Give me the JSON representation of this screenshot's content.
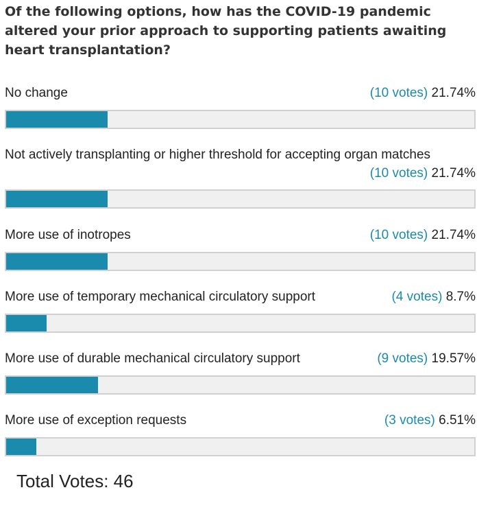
{
  "poll": {
    "question": "Of the following options, how has the COVID-19 pandemic altered your prior approach to supporting patients awaiting heart transplantation?",
    "options": [
      {
        "label": "No change",
        "votes": "(10 votes)",
        "percent": "21.74%",
        "fraction": 0.2174
      },
      {
        "label": "Not actively transplanting or higher threshold for accepting organ matches",
        "votes": "(10 votes)",
        "percent": "21.74%",
        "fraction": 0.2174
      },
      {
        "label": "More use of inotropes",
        "votes": "(10 votes)",
        "percent": "21.74%",
        "fraction": 0.2174
      },
      {
        "label": "More use of temporary mechanical circulatory support",
        "votes": "(4 votes)",
        "percent": "8.7%",
        "fraction": 0.087
      },
      {
        "label": "More use of durable mechanical circulatory support",
        "votes": "(9 votes)",
        "percent": "19.57%",
        "fraction": 0.1957
      },
      {
        "label": "More use of exception requests",
        "votes": "(3 votes)",
        "percent": "6.51%",
        "fraction": 0.0651
      }
    ],
    "total": "Total Votes: 46",
    "colors": {
      "accent": "#1a8bad",
      "track": "#f0f0f0",
      "border": "#d0d0d0"
    }
  }
}
